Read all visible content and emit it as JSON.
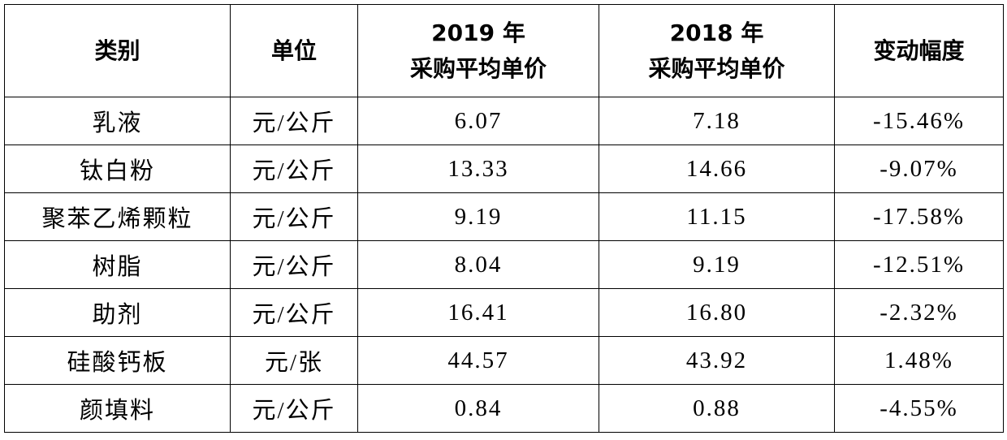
{
  "table": {
    "header": [
      "类别",
      "单位",
      [
        "2019 年",
        "采购平均单价"
      ],
      [
        "2018 年",
        "采购平均单价"
      ],
      "变动幅度"
    ],
    "rows": [
      [
        "乳液",
        "元/公斤",
        "6.07",
        "7.18",
        "-15.46%"
      ],
      [
        "钛白粉",
        "元/公斤",
        "13.33",
        "14.66",
        "-9.07%"
      ],
      [
        "聚苯乙烯颗粒",
        "元/公斤",
        "9.19",
        "11.15",
        "-17.58%"
      ],
      [
        "树脂",
        "元/公斤",
        "8.04",
        "9.19",
        "-12.51%"
      ],
      [
        "助剂",
        "元/公斤",
        "16.41",
        "16.80",
        "-2.32%"
      ],
      [
        "硅酸钙板",
        "元/张",
        "44.57",
        "43.92",
        "1.48%"
      ],
      [
        "颜填料",
        "元/公斤",
        "0.84",
        "0.88",
        "-4.55%"
      ]
    ]
  }
}
